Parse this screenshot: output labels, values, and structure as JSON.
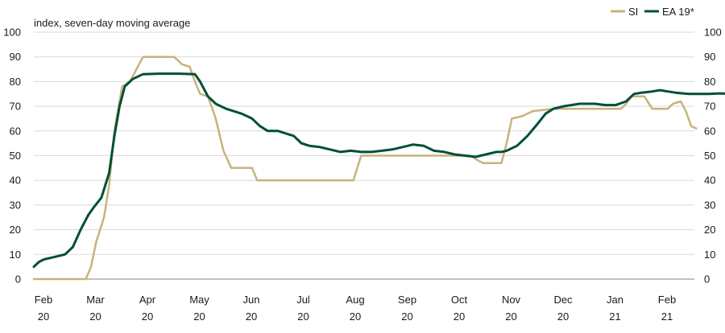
{
  "chart_data": {
    "type": "line",
    "ylabel": "index, seven-day moving average",
    "ylim": [
      0,
      100
    ],
    "yticks": [
      "0",
      "10",
      "20",
      "30",
      "40",
      "50",
      "60",
      "70",
      "80",
      "90",
      "100"
    ],
    "grid": "horizontal",
    "legend_position": "top-right",
    "x_ticks": [
      {
        "line1": "Feb",
        "line2": "20"
      },
      {
        "line1": "Mar",
        "line2": "20"
      },
      {
        "line1": "Apr",
        "line2": "20"
      },
      {
        "line1": "May",
        "line2": "20"
      },
      {
        "line1": "Jun",
        "line2": "20"
      },
      {
        "line1": "Jul",
        "line2": "20"
      },
      {
        "line1": "Aug",
        "line2": "20"
      },
      {
        "line1": "Sep",
        "line2": "20"
      },
      {
        "line1": "Oct",
        "line2": "20"
      },
      {
        "line1": "Nov",
        "line2": "20"
      },
      {
        "line1": "Dec",
        "line2": "20"
      },
      {
        "line1": "Jan",
        "line2": "21"
      },
      {
        "line1": "Feb",
        "line2": "21"
      }
    ],
    "x_unit": "months since Feb 2020",
    "series": [
      {
        "name": "SI",
        "color": "#c8b27e",
        "points": [
          [
            0,
            0
          ],
          [
            1.0,
            0
          ],
          [
            1.1,
            5
          ],
          [
            1.2,
            15
          ],
          [
            1.35,
            25
          ],
          [
            1.45,
            38
          ],
          [
            1.55,
            60
          ],
          [
            1.7,
            78
          ],
          [
            1.85,
            80
          ],
          [
            2.0,
            86
          ],
          [
            2.1,
            90
          ],
          [
            2.3,
            90
          ],
          [
            2.7,
            90
          ],
          [
            2.85,
            87
          ],
          [
            3.0,
            86
          ],
          [
            3.1,
            80
          ],
          [
            3.2,
            75
          ],
          [
            3.35,
            74
          ],
          [
            3.5,
            65
          ],
          [
            3.65,
            52
          ],
          [
            3.8,
            45
          ],
          [
            4.2,
            45
          ],
          [
            4.3,
            40
          ],
          [
            5.0,
            40
          ],
          [
            6.0,
            40
          ],
          [
            6.15,
            40
          ],
          [
            6.3,
            50
          ],
          [
            7.0,
            50
          ],
          [
            8.0,
            50
          ],
          [
            8.4,
            50
          ],
          [
            8.55,
            48
          ],
          [
            8.65,
            47
          ],
          [
            9.0,
            47
          ],
          [
            9.1,
            55
          ],
          [
            9.2,
            65
          ],
          [
            9.4,
            66
          ],
          [
            9.6,
            68
          ],
          [
            9.8,
            68.5
          ],
          [
            10.0,
            69
          ],
          [
            11.0,
            69
          ],
          [
            11.3,
            69
          ],
          [
            11.4,
            71
          ],
          [
            11.5,
            74
          ],
          [
            11.75,
            74
          ],
          [
            11.9,
            69
          ],
          [
            12.2,
            69
          ],
          [
            12.3,
            71
          ],
          [
            12.45,
            72
          ],
          [
            12.55,
            68
          ],
          [
            12.65,
            62
          ],
          [
            12.75,
            61
          ]
        ]
      },
      {
        "name": "EA 19*",
        "color": "#004f38",
        "points": [
          [
            0,
            5
          ],
          [
            0.1,
            7
          ],
          [
            0.2,
            8
          ],
          [
            0.4,
            9
          ],
          [
            0.6,
            10
          ],
          [
            0.75,
            13
          ],
          [
            0.9,
            20
          ],
          [
            1.05,
            26
          ],
          [
            1.15,
            29
          ],
          [
            1.3,
            33
          ],
          [
            1.45,
            43
          ],
          [
            1.55,
            58
          ],
          [
            1.65,
            70
          ],
          [
            1.75,
            78
          ],
          [
            1.9,
            81
          ],
          [
            2.1,
            83
          ],
          [
            2.4,
            83.2
          ],
          [
            2.8,
            83.2
          ],
          [
            3.1,
            83
          ],
          [
            3.2,
            80
          ],
          [
            3.35,
            74
          ],
          [
            3.5,
            71
          ],
          [
            3.7,
            69
          ],
          [
            4.0,
            67
          ],
          [
            4.2,
            65
          ],
          [
            4.35,
            62
          ],
          [
            4.5,
            60
          ],
          [
            4.7,
            60
          ],
          [
            4.85,
            59
          ],
          [
            5.0,
            58
          ],
          [
            5.15,
            55
          ],
          [
            5.3,
            54
          ],
          [
            5.5,
            53.5
          ],
          [
            5.7,
            52.5
          ],
          [
            5.9,
            51.5
          ],
          [
            6.1,
            52
          ],
          [
            6.3,
            51.5
          ],
          [
            6.5,
            51.5
          ],
          [
            6.7,
            52
          ],
          [
            6.9,
            52.5
          ],
          [
            7.1,
            53.5
          ],
          [
            7.3,
            54.5
          ],
          [
            7.5,
            54
          ],
          [
            7.7,
            52
          ],
          [
            7.9,
            51.5
          ],
          [
            8.1,
            50.5
          ],
          [
            8.3,
            50
          ],
          [
            8.5,
            49.5
          ],
          [
            8.7,
            50.5
          ],
          [
            8.9,
            51.5
          ],
          [
            9.0,
            51.5
          ],
          [
            9.1,
            52
          ],
          [
            9.3,
            54
          ],
          [
            9.5,
            58
          ],
          [
            9.7,
            63
          ],
          [
            9.85,
            67
          ],
          [
            10.0,
            69
          ],
          [
            10.2,
            70
          ],
          [
            10.5,
            71
          ],
          [
            10.8,
            71
          ],
          [
            11.0,
            70.5
          ],
          [
            11.2,
            70.5
          ],
          [
            11.4,
            72
          ],
          [
            11.55,
            75
          ],
          [
            11.7,
            75.5
          ],
          [
            11.9,
            76
          ],
          [
            12.05,
            76.5
          ],
          [
            12.2,
            76
          ],
          [
            12.35,
            75.5
          ],
          [
            12.6,
            75
          ],
          [
            12.8,
            75
          ],
          [
            13.0,
            75
          ],
          [
            13.2,
            75.2
          ],
          [
            13.5,
            75
          ],
          [
            13.75,
            75
          ]
        ]
      }
    ]
  },
  "legend": [
    {
      "label": "SI",
      "color": "#c8b27e"
    },
    {
      "label": "EA 19*",
      "color": "#004f38"
    }
  ]
}
